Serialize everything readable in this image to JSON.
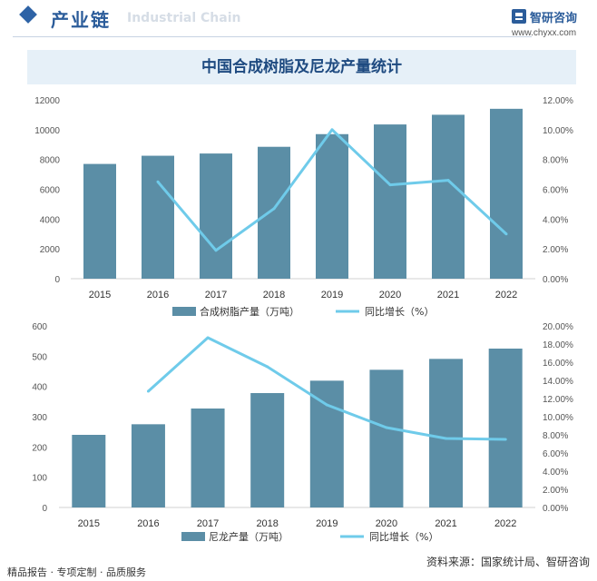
{
  "header": {
    "title": "产业链",
    "watermark": "Industrial Chain",
    "logo_name": "智研咨询",
    "logo_url": "www.chyxx.com"
  },
  "chart_title": "中国合成树脂及尼龙产量统计",
  "colors": {
    "bar": "#5b8ea6",
    "line": "#6fcbea"
  },
  "chart_data": [
    {
      "type": "bar",
      "title": "中国合成树脂及尼龙产量统计",
      "categories": [
        "2015",
        "2016",
        "2017",
        "2018",
        "2019",
        "2020",
        "2021",
        "2022"
      ],
      "series": [
        {
          "name": "合成树脂产量（万吨）",
          "kind": "bar",
          "axis": "left",
          "values": [
            7700,
            8250,
            8400,
            8850,
            9700,
            10350,
            11000,
            11400
          ]
        },
        {
          "name": "同比增长（%）",
          "kind": "line",
          "axis": "right",
          "values": [
            null,
            6.5,
            1.9,
            4.7,
            10.0,
            6.3,
            6.6,
            3.0
          ]
        }
      ],
      "ylim_left": [
        0,
        12000
      ],
      "yticks_left": [
        "0",
        "2000",
        "4000",
        "6000",
        "8000",
        "10000",
        "12000"
      ],
      "ylim_right": [
        0,
        12
      ],
      "yticks_right": [
        "0.00%",
        "2.00%",
        "4.00%",
        "6.00%",
        "8.00%",
        "10.00%",
        "12.00%"
      ],
      "legend_position": "bottom"
    },
    {
      "type": "bar",
      "categories": [
        "2015",
        "2016",
        "2017",
        "2018",
        "2019",
        "2020",
        "2021",
        "2022"
      ],
      "series": [
        {
          "name": "尼龙产量（万吨）",
          "kind": "bar",
          "axis": "left",
          "values": [
            240,
            275,
            327,
            378,
            419,
            455,
            491,
            525
          ]
        },
        {
          "name": "同比增长（%）",
          "kind": "line",
          "axis": "right",
          "values": [
            null,
            12.8,
            18.7,
            15.5,
            11.3,
            8.8,
            7.6,
            7.5
          ]
        }
      ],
      "ylim_left": [
        0,
        600
      ],
      "yticks_left": [
        "0",
        "100",
        "200",
        "300",
        "400",
        "500",
        "600"
      ],
      "ylim_right": [
        0,
        20
      ],
      "yticks_right": [
        "0.00%",
        "2.00%",
        "4.00%",
        "6.00%",
        "8.00%",
        "10.00%",
        "12.00%",
        "14.00%",
        "16.00%",
        "18.00%",
        "20.00%"
      ],
      "legend_position": "bottom"
    }
  ],
  "footer": {
    "left": "精品报告 · 专项定制 · 品质服务",
    "right": "资料来源：国家统计局、智研咨询"
  }
}
